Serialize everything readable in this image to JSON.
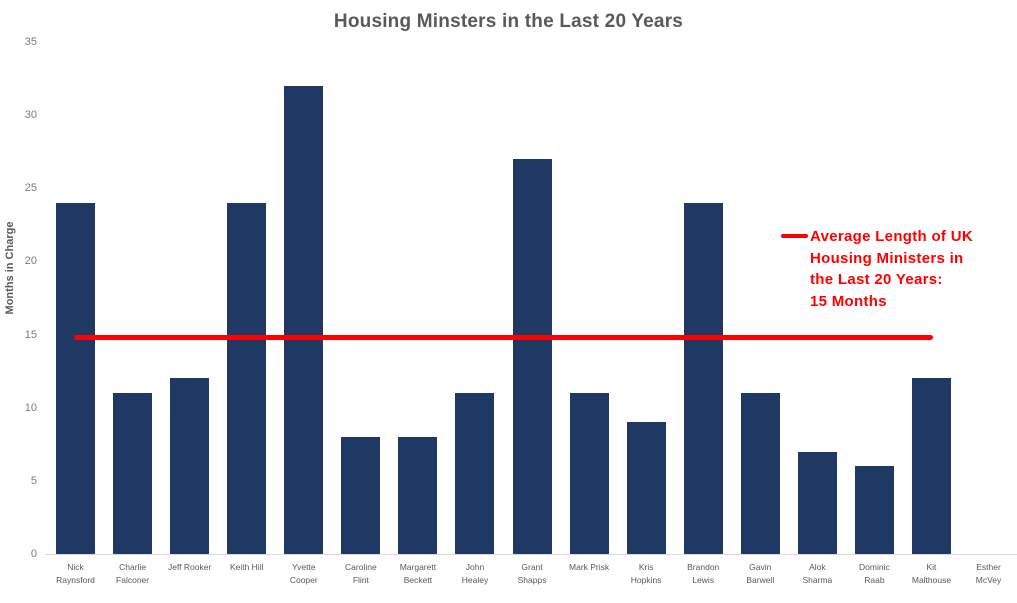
{
  "chart_data": {
    "type": "bar",
    "title": "Housing Minsters in the Last 20 Years",
    "xlabel": "",
    "ylabel": "Months in Charge",
    "categories": [
      "Nick Raynsford",
      "Charlie Falconer",
      "Jeff Rooker",
      "Keith Hill",
      "Yvette Cooper",
      "Caroline Flint",
      "Margarett Beckett",
      "John Healey",
      "Grant Shapps",
      "Mark Prisk",
      "Kris Hopkins",
      "Brandon Lewis",
      "Gavin Barwell",
      "Alok Sharma",
      "Dominic Raab",
      "Kit Malthouse",
      "Esther McVey"
    ],
    "values": [
      24,
      11,
      12,
      24,
      32,
      8,
      8,
      11,
      27,
      11,
      9,
      24,
      11,
      7,
      6,
      12,
      0
    ],
    "x_tick_labels": [
      "Nick\nRaynsford",
      "Charlie\nFalconer",
      "Jeff Rooker",
      "Keith Hill",
      "Yvette\nCooper",
      "Caroline\nFlint",
      "Margarett\nBeckett",
      "John\nHealey",
      "Grant\nShapps",
      "Mark Prisk",
      "Kris\nHopkins",
      "Brandon\nLewis",
      "Gavin\nBarwell",
      "Alok\nSharma",
      "Dominic\nRaab",
      "Kit\nMalthouse",
      "Esther\nMcVey"
    ],
    "ylim": [
      0,
      35
    ],
    "yticks": [
      0,
      5,
      10,
      15,
      20,
      25,
      30,
      35
    ],
    "grid": false,
    "legend_position": "right",
    "bar_color": "#1f3864",
    "average_line": {
      "value": 15,
      "color": "#ff0000",
      "start_category": "Nick Raynsford",
      "end_category": "Kit Malthouse"
    }
  },
  "legend": {
    "text": "Average Length of UK\nHousing Ministers in\nthe Last 20 Years:\n15 Months",
    "color": "#ff0000"
  }
}
